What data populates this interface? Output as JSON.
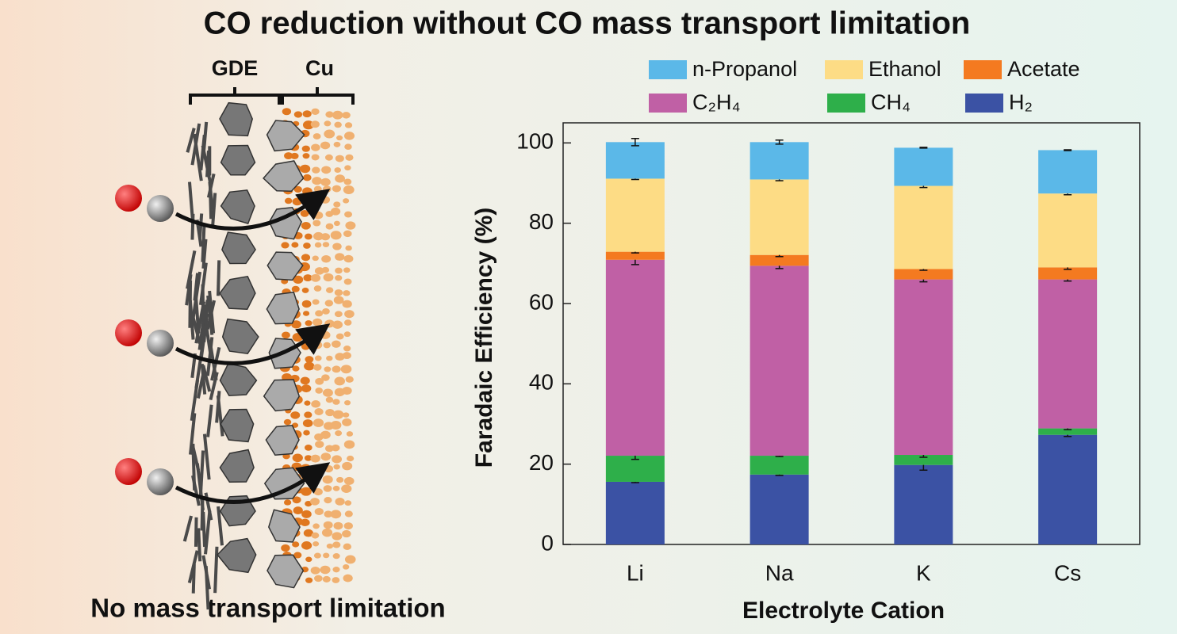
{
  "header": {
    "title": "CO reduction without CO mass transport limitation"
  },
  "illustration": {
    "labels": [
      "GDE",
      "Cu"
    ],
    "caption": "No mass transport limitation"
  },
  "chart_data": {
    "type": "stacked-bar",
    "categories": [
      "Li",
      "Na",
      "K",
      "Cs"
    ],
    "x_label": "Electrolyte Cation",
    "y_label": "Faradaic Efficiency (%)",
    "ylim": [
      0,
      105
    ],
    "yticks": [
      0,
      20,
      40,
      60,
      80,
      100
    ],
    "series": [
      {
        "name": "H₂",
        "color": "#3b52a4",
        "values": [
          15.6,
          17.4,
          19.8,
          27.3
        ],
        "errors": [
          0.2,
          0.2,
          1.3,
          0.4
        ]
      },
      {
        "name": "CH₄",
        "color": "#2eaf4a",
        "values": [
          6.5,
          4.7,
          2.5,
          1.6
        ],
        "errors": [
          0.9,
          0.2,
          0.6,
          0.3
        ]
      },
      {
        "name": "C₂H₄",
        "color": "#c060a5",
        "values": [
          48.8,
          47.3,
          43.7,
          37.1
        ],
        "errors": [
          1.2,
          0.7,
          0.6,
          0.4
        ]
      },
      {
        "name": "Acetate",
        "color": "#f47a20",
        "values": [
          2.0,
          2.7,
          2.6,
          3.0
        ],
        "errors": [
          0.3,
          0.4,
          0.3,
          0.5
        ]
      },
      {
        "name": "Ethanol",
        "color": "#fddc85",
        "values": [
          18.2,
          18.8,
          20.7,
          18.4
        ],
        "errors": [
          0.2,
          0.3,
          0.4,
          0.3
        ]
      },
      {
        "name": "n-Propanol",
        "color": "#5bb8e8",
        "values": [
          9.1,
          9.3,
          9.5,
          10.8
        ],
        "errors": [
          0.9,
          0.5,
          0.1,
          0.1
        ]
      }
    ]
  }
}
